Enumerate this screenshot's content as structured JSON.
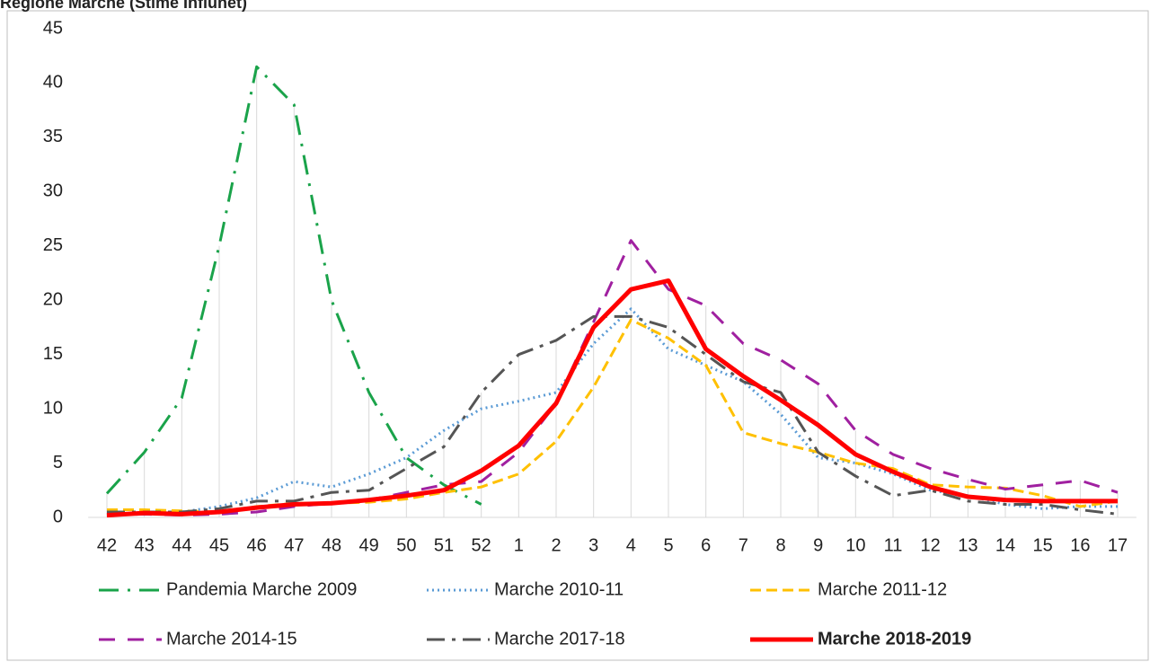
{
  "chart_data": {
    "type": "line",
    "title": "Regione Marche (Stime Influnet)",
    "categories": [
      "42",
      "43",
      "44",
      "45",
      "46",
      "47",
      "48",
      "49",
      "50",
      "51",
      "52",
      "1",
      "2",
      "3",
      "4",
      "5",
      "6",
      "7",
      "8",
      "9",
      "10",
      "11",
      "12",
      "13",
      "14",
      "15",
      "16",
      "17"
    ],
    "ylim": [
      0,
      45
    ],
    "yticks": [
      0,
      5,
      10,
      15,
      20,
      25,
      30,
      35,
      40,
      45
    ],
    "series": [
      {
        "name": "Pandemia Marche 2009",
        "color": "#1aa34a",
        "dash": "22 10 3 10",
        "width": 3,
        "values": [
          2.2,
          6,
          11,
          25,
          41.5,
          38,
          20,
          11.5,
          5.5,
          3,
          1.2,
          null,
          null,
          null,
          null,
          null,
          null,
          null,
          null,
          null,
          null,
          null,
          null,
          null,
          null,
          null,
          null,
          null
        ]
      },
      {
        "name": "Marche 2010-11",
        "color": "#5b9bd5",
        "dash": "2 4",
        "width": 3,
        "values": [
          0.3,
          0.3,
          0.5,
          1,
          1.8,
          3.3,
          2.8,
          4,
          5.5,
          8,
          10,
          10.7,
          11.5,
          16,
          19.2,
          15.5,
          14,
          12.5,
          9.5,
          5.5,
          5,
          4,
          2.5,
          2,
          1.2,
          0.8,
          1,
          1
        ]
      },
      {
        "name": "Marche 2011-12",
        "color": "#ffc000",
        "dash": "12 6",
        "width": 3,
        "values": [
          0.7,
          0.7,
          0.6,
          0.5,
          1,
          1.3,
          1.3,
          1.4,
          1.7,
          2.3,
          2.8,
          4,
          7,
          12,
          18.2,
          16.5,
          14,
          7.8,
          6.8,
          6,
          5,
          4.5,
          3,
          2.8,
          2.7,
          2,
          1,
          1.5
        ]
      },
      {
        "name": "Marche 2014-15",
        "color": "#a020a0",
        "dash": "18 14",
        "width": 3,
        "values": [
          0.2,
          0.3,
          0.2,
          0.3,
          0.5,
          1,
          1.3,
          1.6,
          2.3,
          3,
          3.3,
          6,
          10.5,
          18,
          25.5,
          21,
          19.5,
          16,
          14.5,
          12.3,
          8,
          5.8,
          4.5,
          3.5,
          2.6,
          3,
          3.4,
          2.3
        ]
      },
      {
        "name": "Marche 2017-18",
        "color": "#555555",
        "dash": "20 8 4 8",
        "width": 3,
        "values": [
          0.5,
          0.5,
          0.5,
          0.8,
          1.5,
          1.5,
          2.3,
          2.5,
          4.5,
          6.5,
          11.5,
          15,
          16.3,
          18.5,
          18.5,
          17.5,
          15,
          12.5,
          11.5,
          6,
          3.8,
          2,
          2.5,
          1.5,
          1.2,
          1.2,
          0.7,
          0.3
        ]
      },
      {
        "name": "Marche 2018-2019",
        "color": "#ff0000",
        "dash": "none",
        "width": 5,
        "values": [
          0.2,
          0.4,
          0.3,
          0.5,
          0.9,
          1.2,
          1.3,
          1.6,
          2,
          2.5,
          4.3,
          6.6,
          10.5,
          17.5,
          21,
          21.8,
          15.5,
          13,
          10.8,
          8.5,
          5.8,
          4.2,
          2.8,
          1.9,
          1.6,
          1.5,
          1.5,
          1.5
        ]
      }
    ]
  }
}
